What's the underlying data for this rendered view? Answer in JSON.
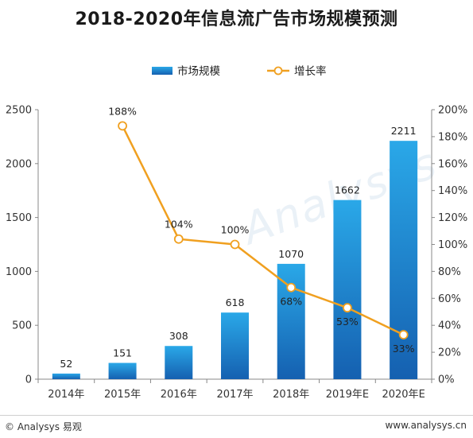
{
  "title": "2018-2020年信息流广告市场规模预测",
  "watermark": "Analysys",
  "footer": {
    "left": "© Analysys 易观",
    "right": "www.analysys.cn"
  },
  "chart_data": {
    "type": "bar",
    "categories": [
      "2014年",
      "2015年",
      "2016年",
      "2017年",
      "2018年",
      "2019年E",
      "2020年E"
    ],
    "series": [
      {
        "name": "市场规模",
        "type": "bar",
        "axis": "left",
        "values": [
          52,
          151,
          308,
          618,
          1070,
          1662,
          2211
        ],
        "labels": [
          "52",
          "151",
          "308",
          "618",
          "1070",
          "1662",
          "2211"
        ]
      },
      {
        "name": "增长率",
        "type": "line",
        "axis": "right",
        "values": [
          null,
          188,
          104,
          100,
          68,
          53,
          33
        ],
        "labels": [
          "",
          "188%",
          "104%",
          "100%",
          "68%",
          "53%",
          "33%"
        ]
      }
    ],
    "y_left": {
      "ylim": [
        0,
        2500
      ],
      "ticks": [
        "0",
        "500",
        "1000",
        "1500",
        "2000",
        "2500"
      ],
      "tick_values": [
        0,
        500,
        1000,
        1500,
        2000,
        2500
      ]
    },
    "y_right": {
      "ylim": [
        0,
        200
      ],
      "ticks": [
        "0%",
        "20%",
        "40%",
        "60%",
        "80%",
        "100%",
        "120%",
        "140%",
        "160%",
        "180%",
        "200%"
      ],
      "tick_values": [
        0,
        20,
        40,
        60,
        80,
        100,
        120,
        140,
        160,
        180,
        200
      ]
    },
    "legend": {
      "position": "top"
    },
    "grid": false,
    "colors": {
      "bar_top": "#2aa8e8",
      "bar_bottom": "#1560b0",
      "line": "#f0a020",
      "marker_fill": "#ffffff"
    }
  }
}
